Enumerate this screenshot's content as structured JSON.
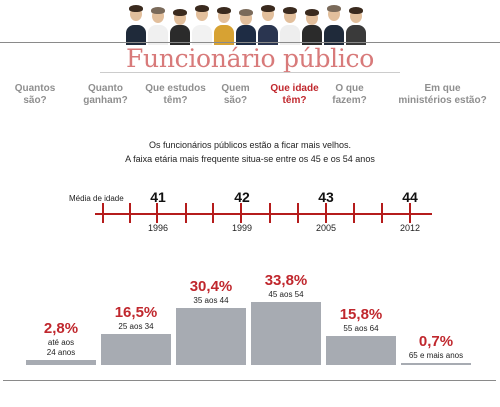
{
  "header": {
    "title": "Funcionário público"
  },
  "nav": {
    "items": [
      {
        "label": "Quantos são?",
        "active": false
      },
      {
        "label": "Quanto ganham?",
        "active": false
      },
      {
        "label": "Que estudos têm?",
        "active": false
      },
      {
        "label": "Quem são?",
        "active": false
      },
      {
        "label": "Que idade têm?",
        "active": true
      },
      {
        "label": "O que fazem?",
        "active": false
      },
      {
        "label": "Em que ministérios estão?",
        "active": false
      }
    ]
  },
  "intro": {
    "line1": "Os funcionários públicos estão a ficar mais velhos.",
    "line2": "A faixa etária mais frequente situa-se entre os 45 e os 54 anos"
  },
  "colors": {
    "accent": "#c0272d",
    "title": "#d87a7a",
    "bar": "#a7abb2",
    "nav_inactive": "#8f8f8f"
  },
  "chart_data": [
    {
      "type": "line",
      "label": "Média de idade",
      "x": [
        "1996",
        "1999",
        "2005",
        "2012"
      ],
      "values": [
        41,
        42,
        43,
        44
      ],
      "value_labels": [
        "41",
        "42",
        "43",
        "44"
      ]
    },
    {
      "type": "bar",
      "categories": [
        "até aos 24 anos",
        "25 aos 34",
        "35 aos 44",
        "45 aos 54",
        "55 aos 64",
        "65 e mais anos"
      ],
      "values": [
        2.8,
        16.5,
        30.4,
        33.8,
        15.8,
        0.7
      ],
      "value_labels": [
        "2,8%",
        "16,5%",
        "30,4%",
        "33,8%",
        "15,8%",
        "0,7%"
      ],
      "unit": "%"
    }
  ]
}
